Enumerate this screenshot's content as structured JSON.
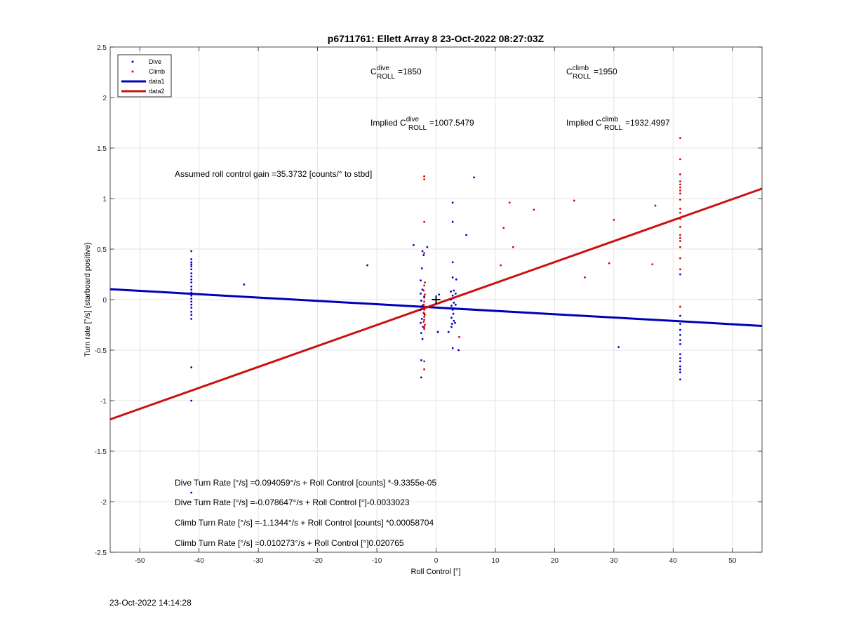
{
  "chart_data": {
    "type": "scatter",
    "title": "p6711761: Ellett Array 8 23-Oct-2022 08:27:03Z",
    "xlabel": "Roll Control [°]",
    "ylabel": "Turn rate [°/s] (starboard positive)",
    "xlim": [
      -55,
      55
    ],
    "ylim": [
      -2.5,
      2.5
    ],
    "xticks": [
      -50,
      -40,
      -30,
      -20,
      -10,
      0,
      10,
      20,
      30,
      40,
      50
    ],
    "yticks": [
      -2.5,
      -2,
      -1.5,
      -1,
      -0.5,
      0,
      0.5,
      1,
      1.5,
      2,
      2.5
    ],
    "grid": true,
    "legend": {
      "position": "top-left",
      "entries": [
        "Dive",
        "Climb",
        "data1",
        "data2"
      ]
    },
    "series": [
      {
        "name": "Dive",
        "kind": "points",
        "color": "#0000cc",
        "points": [
          [
            -41.3,
            0.48
          ],
          [
            -41.3,
            0.4
          ],
          [
            -41.3,
            0.37
          ],
          [
            -41.3,
            0.35
          ],
          [
            -41.3,
            0.33
          ],
          [
            -41.3,
            0.3
          ],
          [
            -41.3,
            0.26
          ],
          [
            -41.3,
            0.23
          ],
          [
            -41.3,
            0.2
          ],
          [
            -41.3,
            0.17
          ],
          [
            -41.3,
            0.13
          ],
          [
            -41.3,
            0.1
          ],
          [
            -41.3,
            0.07
          ],
          [
            -41.3,
            0.04
          ],
          [
            -41.3,
            0.01
          ],
          [
            -41.3,
            -0.02
          ],
          [
            -41.3,
            -0.05
          ],
          [
            -41.3,
            -0.08
          ],
          [
            -41.3,
            -0.12
          ],
          [
            -41.3,
            -0.15
          ],
          [
            -41.3,
            -0.19
          ],
          [
            -41.3,
            -0.67
          ],
          [
            -41.3,
            -1.0
          ],
          [
            -41.3,
            -1.91
          ],
          [
            -32.4,
            0.15
          ],
          [
            -11.6,
            0.34
          ],
          [
            -3.8,
            0.54
          ],
          [
            -2.3,
            0.48
          ],
          [
            -2.1,
            0.44
          ],
          [
            -2.4,
            0.31
          ],
          [
            -2.6,
            0.19
          ],
          [
            -2.3,
            0.1
          ],
          [
            -2.6,
            0.06
          ],
          [
            -2.0,
            0.03
          ],
          [
            -2.5,
            -0.01
          ],
          [
            -2.3,
            -0.06
          ],
          [
            -2.6,
            -0.1
          ],
          [
            -2.0,
            -0.14
          ],
          [
            -2.4,
            -0.19
          ],
          [
            -2.6,
            -0.23
          ],
          [
            -2.2,
            -0.27
          ],
          [
            -2.5,
            -0.33
          ],
          [
            -2.3,
            -0.39
          ],
          [
            -2.5,
            -0.6
          ],
          [
            -2.5,
            -0.77
          ],
          [
            -1.5,
            0.52
          ],
          [
            2.8,
            0.96
          ],
          [
            2.8,
            0.77
          ],
          [
            2.8,
            0.37
          ],
          [
            2.8,
            0.22
          ],
          [
            3.4,
            0.2
          ],
          [
            2.5,
            0.08
          ],
          [
            3.0,
            0.09
          ],
          [
            3.3,
            0.06
          ],
          [
            2.8,
            0.04
          ],
          [
            2.5,
            0.0
          ],
          [
            3.0,
            -0.03
          ],
          [
            2.6,
            -0.06
          ],
          [
            3.3,
            -0.05
          ],
          [
            2.8,
            -0.1
          ],
          [
            2.9,
            -0.14
          ],
          [
            2.6,
            -0.18
          ],
          [
            3.0,
            -0.21
          ],
          [
            2.7,
            -0.24
          ],
          [
            3.2,
            -0.23
          ],
          [
            2.6,
            -0.27
          ],
          [
            0.3,
            -0.32
          ],
          [
            2.1,
            -0.32
          ],
          [
            2.8,
            -0.48
          ],
          [
            3.8,
            -0.5
          ],
          [
            5.1,
            0.64
          ],
          [
            6.4,
            1.21
          ],
          [
            0.5,
            0.05
          ],
          [
            30.8,
            -0.47
          ],
          [
            41.2,
            0.25
          ],
          [
            41.2,
            -0.16
          ],
          [
            41.2,
            -0.24
          ],
          [
            41.2,
            -0.3
          ],
          [
            41.2,
            -0.35
          ],
          [
            41.2,
            -0.4
          ],
          [
            41.2,
            -0.44
          ],
          [
            41.2,
            -0.54
          ],
          [
            41.2,
            -0.58
          ],
          [
            41.2,
            -0.61
          ],
          [
            41.2,
            -0.66
          ],
          [
            41.2,
            -0.69
          ],
          [
            41.2,
            -0.72
          ],
          [
            41.2,
            -0.79
          ]
        ]
      },
      {
        "name": "Climb",
        "kind": "points",
        "color": "#dd0000",
        "points": [
          [
            -2.0,
            1.22
          ],
          [
            -2.0,
            1.19
          ],
          [
            -2.0,
            0.77
          ],
          [
            -2.0,
            0.46
          ],
          [
            -1.9,
            0.17
          ],
          [
            -2.0,
            0.14
          ],
          [
            -2.1,
            0.09
          ],
          [
            -1.9,
            0.05
          ],
          [
            -2.0,
            0.02
          ],
          [
            -2.0,
            -0.02
          ],
          [
            -2.1,
            -0.05
          ],
          [
            -1.9,
            -0.07
          ],
          [
            -2.0,
            -0.1
          ],
          [
            -2.1,
            -0.13
          ],
          [
            -1.9,
            -0.15
          ],
          [
            -2.0,
            -0.17
          ],
          [
            -2.0,
            -0.2
          ],
          [
            -2.1,
            -0.22
          ],
          [
            -1.9,
            -0.25
          ],
          [
            -2.0,
            -0.27
          ],
          [
            -2.0,
            -0.29
          ],
          [
            -2.0,
            -0.61
          ],
          [
            -2.0,
            -0.69
          ],
          [
            3.9,
            -0.37
          ],
          [
            10.9,
            0.34
          ],
          [
            11.4,
            0.71
          ],
          [
            12.4,
            0.96
          ],
          [
            13.0,
            0.52
          ],
          [
            16.5,
            0.89
          ],
          [
            23.3,
            0.98
          ],
          [
            25.1,
            0.22
          ],
          [
            29.2,
            0.36
          ],
          [
            30.0,
            0.79
          ],
          [
            36.5,
            0.35
          ],
          [
            37.0,
            0.93
          ],
          [
            41.2,
            1.6
          ],
          [
            41.2,
            1.39
          ],
          [
            41.2,
            1.24
          ],
          [
            41.2,
            1.17
          ],
          [
            41.2,
            1.14
          ],
          [
            41.2,
            1.11
          ],
          [
            41.2,
            1.08
          ],
          [
            41.2,
            1.05
          ],
          [
            41.2,
            0.99
          ],
          [
            41.2,
            0.9
          ],
          [
            41.2,
            0.86
          ],
          [
            41.2,
            0.8
          ],
          [
            41.2,
            0.72
          ],
          [
            41.2,
            0.64
          ],
          [
            41.2,
            0.61
          ],
          [
            41.2,
            0.58
          ],
          [
            41.2,
            0.52
          ],
          [
            41.2,
            0.41
          ],
          [
            41.2,
            0.3
          ],
          [
            41.2,
            -0.07
          ]
        ]
      },
      {
        "name": "data1",
        "kind": "line",
        "color": "#0000bb",
        "points": [
          [
            -55,
            0.103
          ],
          [
            55,
            -0.26
          ]
        ]
      },
      {
        "name": "data2",
        "kind": "line",
        "color": "#cc1111",
        "points": [
          [
            -55,
            -1.185
          ],
          [
            55,
            1.098
          ]
        ]
      }
    ],
    "marker": {
      "symbol": "+",
      "x": 0,
      "y": 0
    },
    "annotations": {
      "c_roll_dive": {
        "sup": "dive",
        "sub": "ROLL",
        "value": "=1850"
      },
      "c_roll_climb": {
        "sup": "climb",
        "sub": "ROLL",
        "value": "=1950"
      },
      "implied_dive": {
        "prefix": "Implied ",
        "sup": "dive",
        "sub": "ROLL",
        "value": "=1007.5479"
      },
      "implied_climb": {
        "prefix": "Implied ",
        "sup": "climb",
        "sub": "ROLL",
        "value": "=1932.4997"
      },
      "gain": "Assumed roll control gain =35.3732 [counts/° to stbd]",
      "eq_dive_counts": "Dive Turn Rate [°/s] =0.094059°/s + Roll Control [counts] *-9.3355e-05",
      "eq_dive_deg": "Dive Turn Rate [°/s] =-0.078647°/s + Roll Control [°]-0.0033023",
      "eq_climb_counts": "Climb Turn Rate [°/s] =-1.1344°/s + Roll Control [counts] *0.00058704",
      "eq_climb_deg": "Climb Turn Rate [°/s] =0.010273°/s + Roll Control [°]0.020765"
    }
  },
  "footer": {
    "date": "23-Oct-2022 14:14:28"
  }
}
